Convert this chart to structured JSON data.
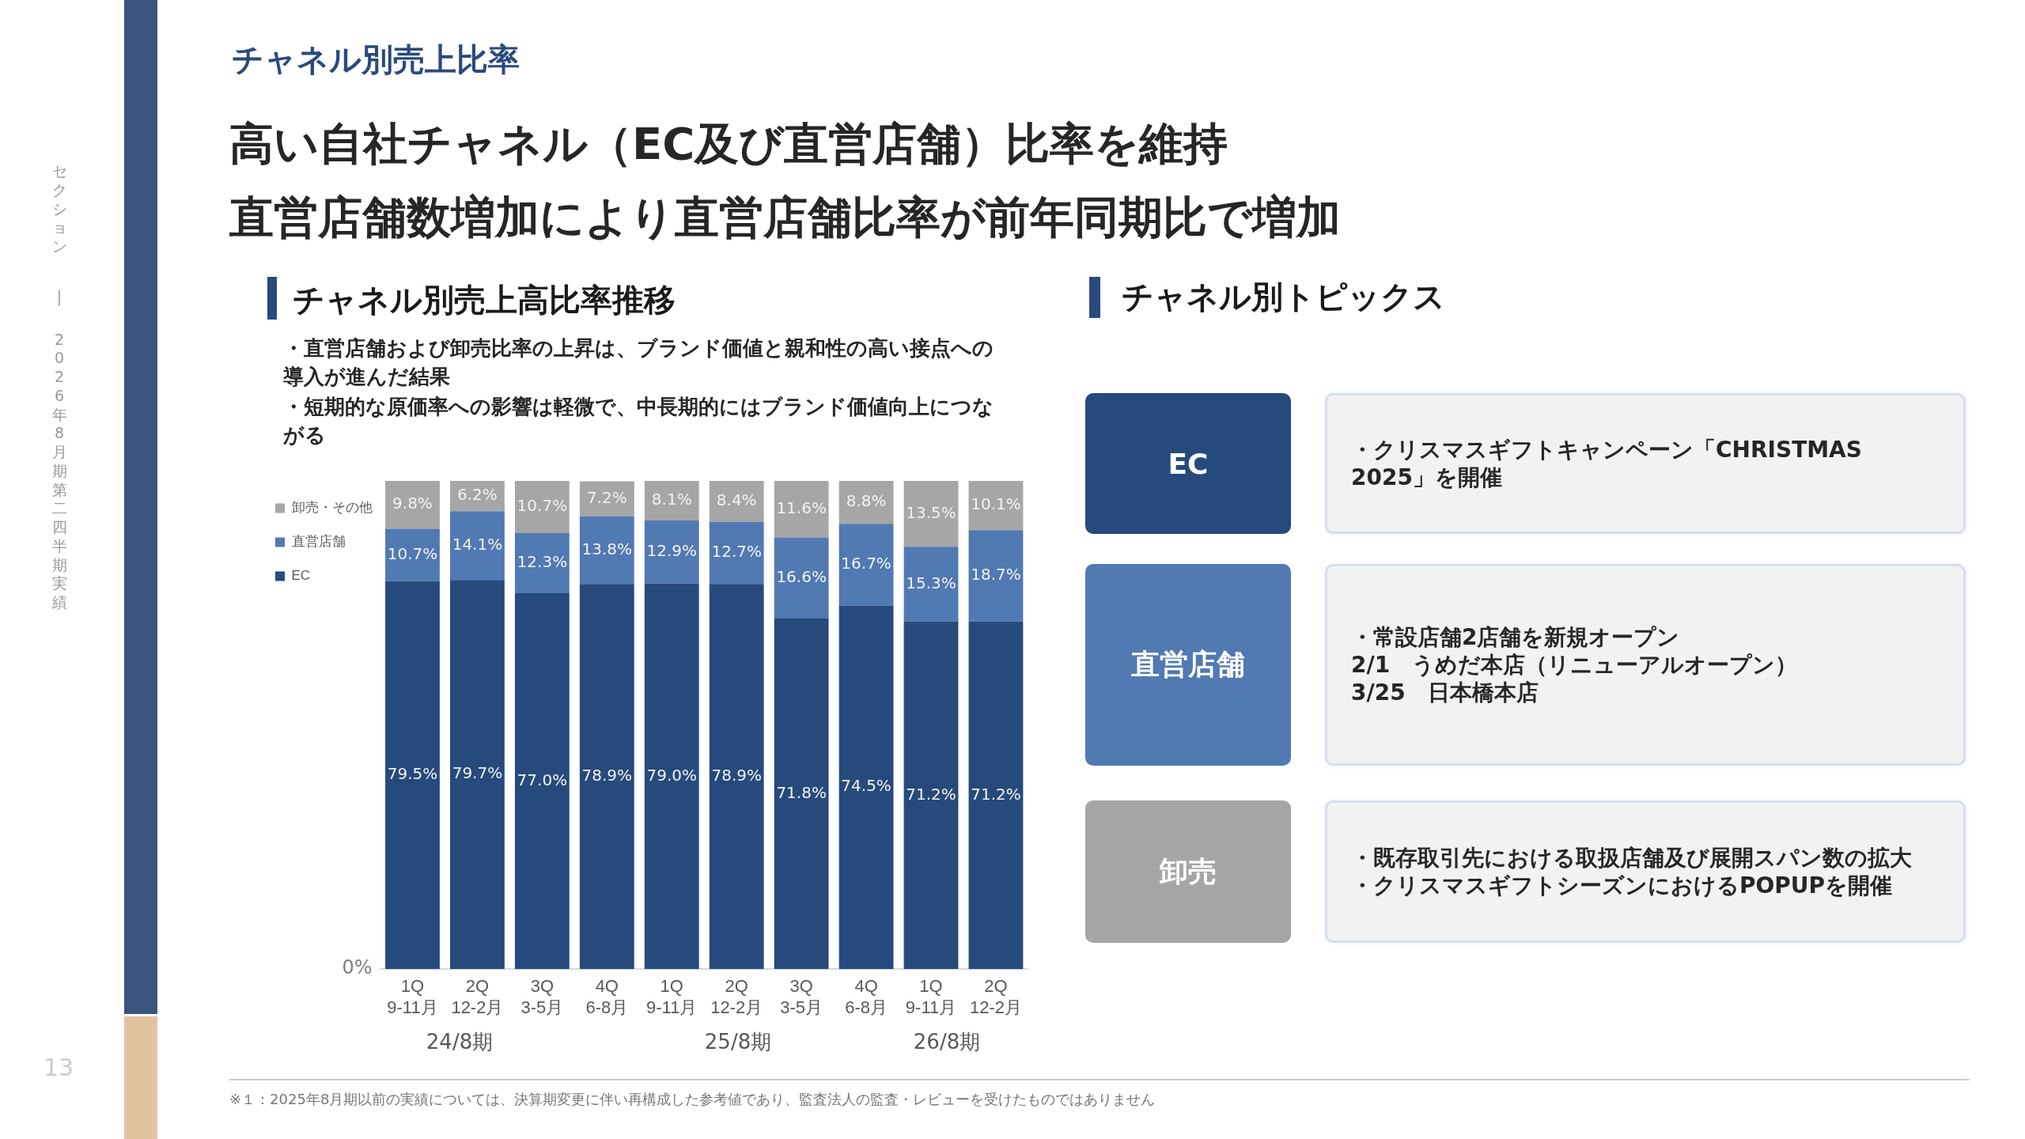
{
  "chart_data": [
    {
      "type": "bar",
      "title": "チャネル別売上高比率推移",
      "subtitle": "・直営店舗および卸売比率の上昇は、ブランド価値と親和性の高い接点への導入が進んだ結果",
      "categories": [
        "1Q\n9-11月",
        "2Q\n12-2月",
        "3Q\n3-5月",
        "4Q\n6-8月",
        "1Q\n9-11月",
        "2Q\n12-2月",
        "3Q\n3-5月",
        "4Q\n6-8月",
        "1Q\n9-11月",
        "2Q\n12-2月"
      ],
      "stacked": true,
      "series": [
        {
          "name": "EC",
          "color": "#264a7c",
          "values": [
            79.5,
            79.7,
            77.0,
            78.9,
            79.0,
            78.9,
            71.8,
            74.5,
            71.2,
            71.2
          ],
          "value_labels": [
            "79.5%",
            "79.7%",
            "77.0%",
            "78.9%",
            "79.0%",
            "78.9%",
            "71.8%",
            "74.5%",
            "71.2%",
            "71.2%"
          ]
        },
        {
          "name": "直営店舗",
          "color": "#5179b2",
          "values": [
            10.7,
            14.1,
            12.3,
            13.8,
            12.9,
            12.7,
            16.6,
            16.7,
            15.3,
            18.7
          ],
          "value_labels": [
            "10.7%",
            "14.1%",
            "12.3%",
            "13.8%",
            "12.9%",
            "12.7%",
            "16.6%",
            "16.7%",
            "15.3%",
            "18.7%"
          ]
        },
        {
          "name": "卸売・その他",
          "color": "#a6a6a6",
          "values": [
            9.8,
            6.2,
            10.7,
            7.2,
            8.1,
            8.4,
            11.6,
            8.8,
            13.5,
            10.1
          ],
          "value_labels": [
            "9.8%",
            "6.2%",
            "10.7%",
            "7.2%",
            "8.1%",
            "8.4%",
            "11.6%",
            "8.8%",
            "13.5%",
            "10.1%"
          ]
        }
      ],
      "legend": "left",
      "annotations": [
        "チャネル別売上比率",
        "高い自社チャネル（EC及び直営店舗）比率を維持",
        "直営店舗数増加により直営店舗比率が前年同期比で増加",
        "セクション",
        "|",
        "2026年8月期第二四半期実績",
        "13",
        "※１：2025年8月期以前の実績については、決算期変更に伴い再構成した参考値であり、監査法人の監査・レビューを受けたものではありません",
        "24/8期",
        "25/8期",
        "26/8期",
        "・短期的な原価率への影響は軽微で、中長期的にはブランド価値向上につながる",
        "0%"
      ]
    },
    {
      "type": "other",
      "title": "チャネル別トピックス",
      "categories": [
        "EC",
        "直営店舗",
        "卸売"
      ],
      "colors": [
        "#264a7c",
        "#5179b2",
        "#a6a6a6"
      ],
      "annotations": [
        {
          "text": "・クリスマスギフトキャンペーン「CHRISTMAS 2025」を開催",
          "x": "EC"
        },
        {
          "text": "・常設店舗2店舗を新規オープン",
          "x": "直営店舗"
        },
        {
          "text": "2/1　うめだ本店（リニューアルオープン）",
          "x": "直営店舗"
        },
        {
          "text": "3/25　日本橋本店",
          "x": "直営店舗"
        },
        {
          "text": "・既存取引先における取扱店舗及び展開スパン数の拡大",
          "x": "卸売"
        },
        {
          "text": "・クリスマスギフトシーズンにおけるPOPUPを開催",
          "x": "卸売"
        }
      ]
    }
  ]
}
